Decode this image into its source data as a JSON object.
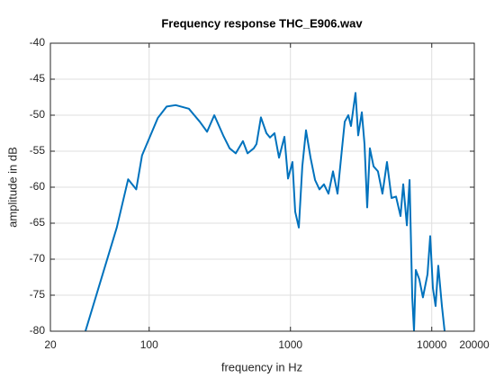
{
  "chart_data": {
    "type": "line",
    "title": "Frequency response THC_E906.wav",
    "xlabel": "frequency in Hz",
    "ylabel": "amplitude in dB",
    "xscale": "log",
    "grid": true,
    "xlim": [
      20,
      20000
    ],
    "ylim": [
      -80,
      -40
    ],
    "xticks": [
      20,
      100,
      1000,
      10000,
      20000
    ],
    "yticks": [
      -80,
      -75,
      -70,
      -65,
      -60,
      -55,
      -50,
      -45,
      -40
    ],
    "x": [
      35.4,
      59,
      71,
      81,
      89,
      115,
      133,
      154,
      191,
      228,
      257,
      289,
      334,
      371,
      410,
      461,
      497,
      550,
      575,
      618,
      676,
      716,
      771,
      830,
      906,
      961,
      1033,
      1080,
      1146,
      1213,
      1288,
      1387,
      1493,
      1604,
      1726,
      1858,
      2000,
      2153,
      2317,
      2422,
      2567,
      2681,
      2886,
      3015,
      3199,
      3342,
      3492,
      3648,
      3873,
      4160,
      4477,
      4820,
      5189,
      5585,
      6011,
      6282,
      6667,
      6965,
      7278,
      7488,
      7709,
      8167,
      8658,
      9330,
      9749,
      10186,
      10641,
      11119,
      11800,
      12332
    ],
    "series": [
      {
        "color": "#0072bd",
        "values": [
          -80,
          -65.6,
          -58.9,
          -60.3,
          -55.6,
          -50.4,
          -48.8,
          -48.6,
          -49.1,
          -50.9,
          -52.3,
          -50,
          -52.8,
          -54.6,
          -55.3,
          -53.6,
          -55.3,
          -54.6,
          -54,
          -50.3,
          -52.5,
          -53.1,
          -52.5,
          -55.9,
          -53,
          -58.8,
          -56.5,
          -63.4,
          -65.6,
          -57.1,
          -52.1,
          -55.9,
          -59,
          -60.3,
          -59.6,
          -60.9,
          -57.8,
          -60.9,
          -54.6,
          -50.9,
          -50,
          -51.5,
          -46.9,
          -52.8,
          -49.6,
          -54,
          -62.8,
          -54.6,
          -57.1,
          -57.8,
          -60.9,
          -56.5,
          -61.5,
          -61.3,
          -64,
          -59.6,
          -65.3,
          -59,
          -75.3,
          -80,
          -71.5,
          -72.8,
          -75.3,
          -72.1,
          -66.8,
          -74,
          -76.5,
          -70.9,
          -76.5,
          -80
        ]
      }
    ]
  }
}
